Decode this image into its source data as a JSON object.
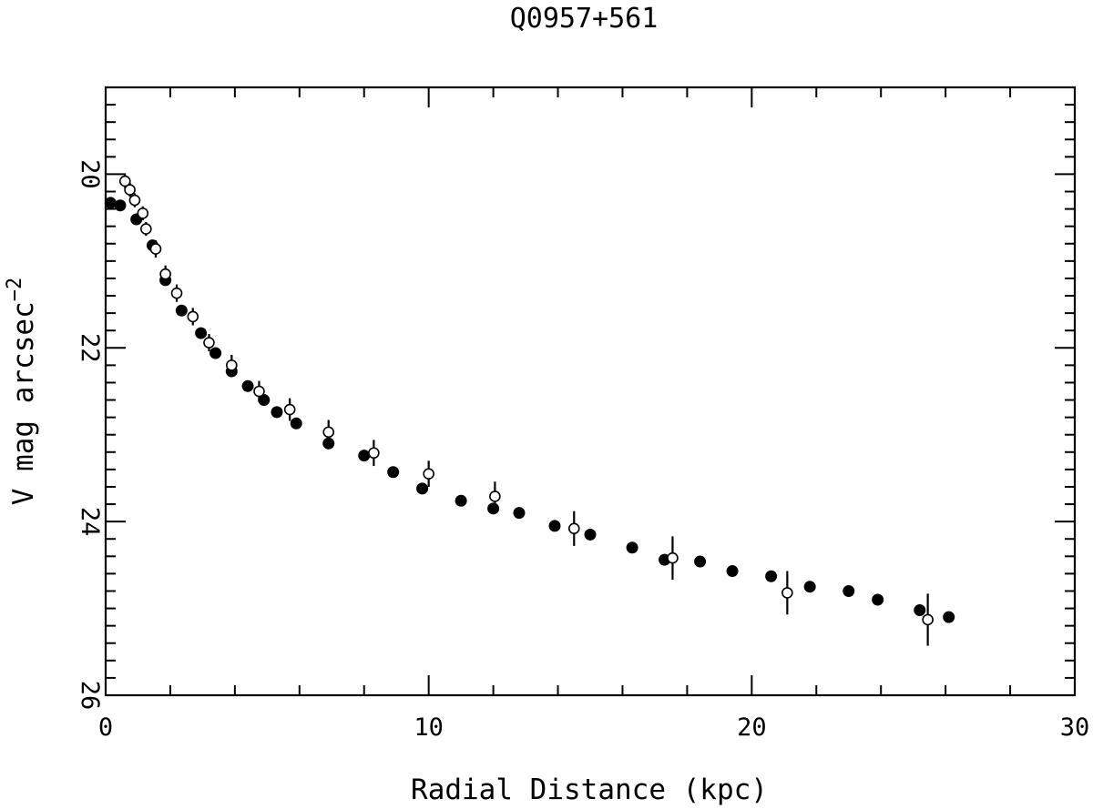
{
  "chart_data": {
    "type": "scatter",
    "title": "Q0957+561",
    "xlabel": "Radial Distance (kpc)",
    "ylabel_main": "V mag arcsec",
    "ylabel_exponent": "−2",
    "xlim": [
      0,
      30
    ],
    "ylim": [
      19,
      26
    ],
    "y_inverted": true,
    "x_major_ticks": [
      0,
      10,
      20,
      30
    ],
    "x_tick_labels": [
      "0",
      "10",
      "20",
      "30"
    ],
    "y_major_ticks": [
      20,
      22,
      24,
      26
    ],
    "y_tick_labels": [
      "20",
      "22",
      "24",
      "26"
    ],
    "grid": false,
    "series": [
      {
        "marker": "filled-circle",
        "points": [
          [
            0.15,
            20.33
          ],
          [
            0.45,
            20.36
          ],
          [
            0.95,
            20.52
          ],
          [
            1.45,
            20.82
          ],
          [
            1.85,
            21.22
          ],
          [
            2.35,
            21.57
          ],
          [
            2.95,
            21.83
          ],
          [
            3.4,
            22.06
          ],
          [
            3.9,
            22.27
          ],
          [
            4.4,
            22.44
          ],
          [
            4.9,
            22.6
          ],
          [
            5.3,
            22.74
          ],
          [
            5.9,
            22.87
          ],
          [
            6.9,
            23.1
          ],
          [
            8.0,
            23.24
          ],
          [
            8.9,
            23.43
          ],
          [
            9.8,
            23.62
          ],
          [
            11.0,
            23.76
          ],
          [
            12.0,
            23.85
          ],
          [
            12.8,
            23.9
          ],
          [
            13.9,
            24.05
          ],
          [
            15.0,
            24.15
          ],
          [
            16.3,
            24.3
          ],
          [
            17.3,
            24.44
          ],
          [
            18.4,
            24.46
          ],
          [
            19.4,
            24.57
          ],
          [
            20.6,
            24.63
          ],
          [
            21.8,
            24.75
          ],
          [
            23.0,
            24.8
          ],
          [
            23.9,
            24.9
          ],
          [
            25.2,
            25.02
          ],
          [
            26.1,
            25.1
          ]
        ]
      },
      {
        "marker": "open-circle",
        "points": [
          [
            0.6,
            20.08,
            0.08
          ],
          [
            0.75,
            20.18,
            0.08
          ],
          [
            0.9,
            20.3,
            0.08
          ],
          [
            1.15,
            20.45,
            0.08
          ],
          [
            1.25,
            20.63,
            0.08
          ],
          [
            1.55,
            20.86,
            0.1
          ],
          [
            1.85,
            21.15,
            0.1
          ],
          [
            2.2,
            21.37,
            0.1
          ],
          [
            2.7,
            21.64,
            0.1
          ],
          [
            3.2,
            21.94,
            0.1
          ],
          [
            3.9,
            22.2,
            0.12
          ],
          [
            4.75,
            22.5,
            0.12
          ],
          [
            5.7,
            22.71,
            0.13
          ],
          [
            6.9,
            22.97,
            0.14
          ],
          [
            8.3,
            23.21,
            0.15
          ],
          [
            10.0,
            23.45,
            0.15
          ],
          [
            12.05,
            23.71,
            0.17
          ],
          [
            14.5,
            24.08,
            0.2
          ],
          [
            17.55,
            24.42,
            0.25
          ],
          [
            21.1,
            24.82,
            0.25
          ],
          [
            25.45,
            25.13,
            0.3
          ]
        ]
      }
    ]
  }
}
